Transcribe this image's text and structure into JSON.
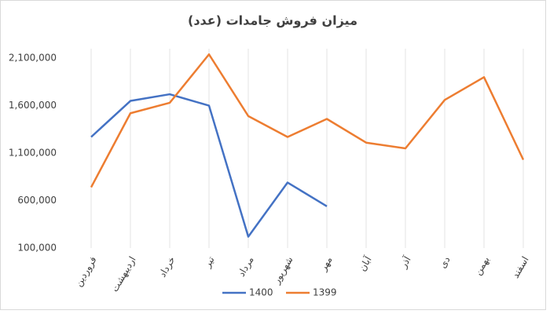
{
  "chart_data": {
    "type": "line",
    "title": "میزان فروش جامدات (عدد)",
    "categories": [
      "فروردین",
      "اردیبهشت",
      "خرداد",
      "تیر",
      "مرداد",
      "شهریور",
      "مهر",
      "آبان",
      "آذر",
      "دی",
      "بهمن",
      "اسفند"
    ],
    "series": [
      {
        "name": "1400",
        "color": "#4472c4",
        "values": [
          1270000,
          1650000,
          1720000,
          1600000,
          220000,
          790000,
          540000,
          null,
          null,
          null,
          null,
          null
        ]
      },
      {
        "name": "1399",
        "color": "#ed7d31",
        "values": [
          740000,
          1520000,
          1630000,
          2140000,
          1490000,
          1270000,
          1460000,
          1210000,
          1150000,
          1660000,
          1900000,
          1030000
        ]
      }
    ],
    "ylim": [
      100000,
      2200000
    ],
    "yticks": [
      {
        "value": 100000,
        "label": "100,000"
      },
      {
        "value": 600000,
        "label": "600,000"
      },
      {
        "value": 1100000,
        "label": "1,100,000"
      },
      {
        "value": 1600000,
        "label": "1,600,000"
      },
      {
        "value": 2100000,
        "label": "2,100,000"
      }
    ],
    "xgrid": true,
    "legend": "bottom"
  }
}
